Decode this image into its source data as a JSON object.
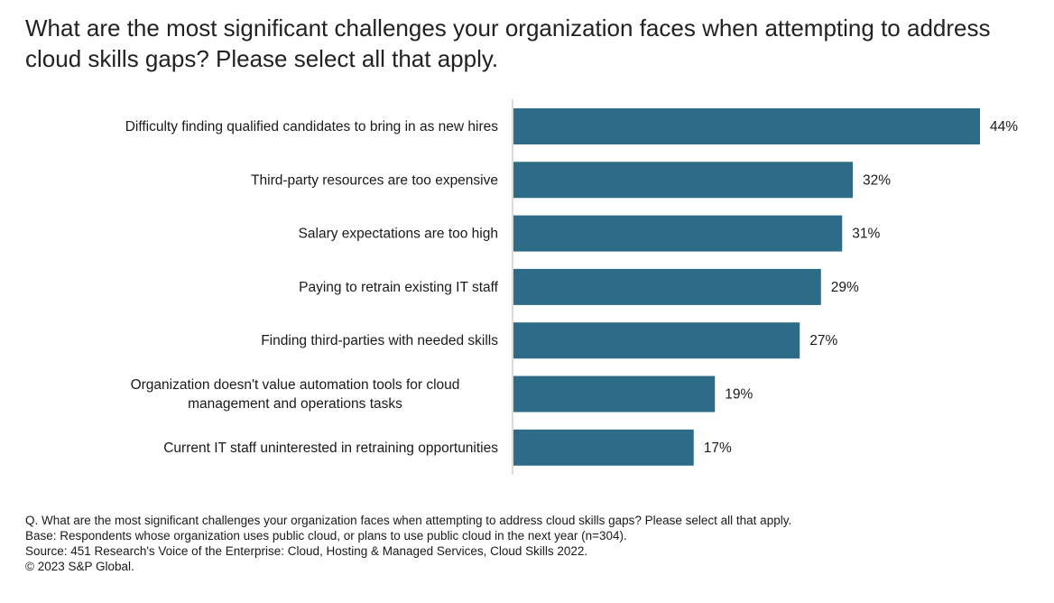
{
  "title": "What are the most significant challenges your organization faces when attempting to address cloud skills gaps? Please select all that apply.",
  "chart_data": {
    "type": "bar",
    "orientation": "horizontal",
    "categories": [
      "Difficulty finding qualified candidates to bring in as new hires",
      "Third-party resources are too expensive",
      "Salary expectations are too high",
      "Paying to retrain existing IT staff",
      "Finding third-parties with needed skills",
      "Organization doesn't value automation tools for cloud management and operations tasks",
      "Current IT staff uninterested in retraining opportunities"
    ],
    "category_lines": [
      [
        "Difficulty finding qualified candidates to bring in as new hires"
      ],
      [
        "Third-party resources are too expensive"
      ],
      [
        "Salary expectations are too high"
      ],
      [
        "Paying to retrain existing IT staff"
      ],
      [
        "Finding third-parties with needed skills"
      ],
      [
        "Organization doesn't value automation tools for cloud",
        "management and operations tasks"
      ],
      [
        "Current IT staff uninterested in retraining opportunities"
      ]
    ],
    "values": [
      44,
      32,
      31,
      29,
      27,
      19,
      17
    ],
    "value_labels": [
      "44%",
      "32%",
      "31%",
      "29%",
      "27%",
      "19%",
      "17%"
    ],
    "unit": "%",
    "bar_color": "#2e6b86",
    "grid": false,
    "legend": "none"
  },
  "footnotes": {
    "question": "Q. What are the most significant challenges your organization faces when attempting to address cloud skills gaps? Please select all that apply.",
    "base": "Base: Respondents whose organization uses public cloud, or plans to use public cloud in the next year (n=304).",
    "source": "Source: 451 Research's Voice of the Enterprise: Cloud, Hosting & Managed Services, Cloud Skills 2022.",
    "copyright": "© 2023 S&P Global."
  }
}
